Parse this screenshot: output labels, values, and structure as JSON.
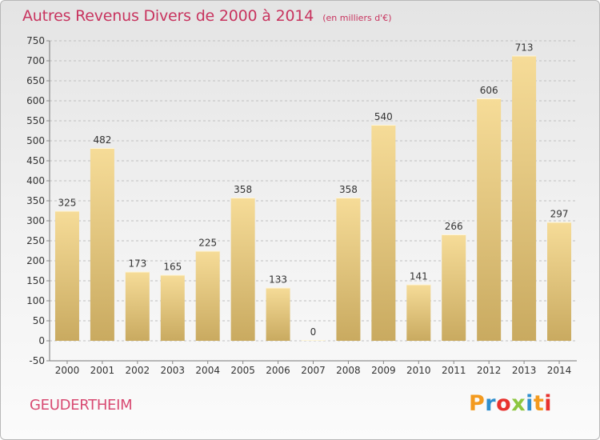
{
  "header": {
    "title": "Autres Revenus Divers de 2000 à 2014",
    "subtitle": "(en milliers d'€)"
  },
  "footer": {
    "commune": "GEUDERTHEIM",
    "brand": "Proxiti",
    "brand_colors": [
      "#f39a1f",
      "#2f8fce",
      "#e8322e",
      "#8dc63f",
      "#2f8fce",
      "#f39a1f",
      "#e8322e"
    ]
  },
  "colors": {
    "bar_light": "#f6dc98",
    "bar_dark": "#c9aa60",
    "title": "#c8345f",
    "axis_text": "#333333",
    "grid": "#bfbfbf"
  },
  "chart_data": {
    "type": "bar",
    "title": "Autres Revenus Divers de 2000 à 2014",
    "subtitle": "(en milliers d'€)",
    "categories": [
      "2000",
      "2001",
      "2002",
      "2003",
      "2004",
      "2005",
      "2006",
      "2007",
      "2008",
      "2009",
      "2010",
      "2011",
      "2012",
      "2013",
      "2014"
    ],
    "values": [
      325,
      482,
      173,
      165,
      225,
      358,
      133,
      0,
      358,
      540,
      141,
      266,
      606,
      713,
      297
    ],
    "ylim": [
      -50,
      750
    ],
    "yticks": [
      -50,
      0,
      50,
      100,
      150,
      200,
      250,
      300,
      350,
      400,
      450,
      500,
      550,
      600,
      650,
      700,
      750
    ],
    "grid": "horizontal dashed",
    "legend": "none",
    "xlabel": "",
    "ylabel": ""
  }
}
